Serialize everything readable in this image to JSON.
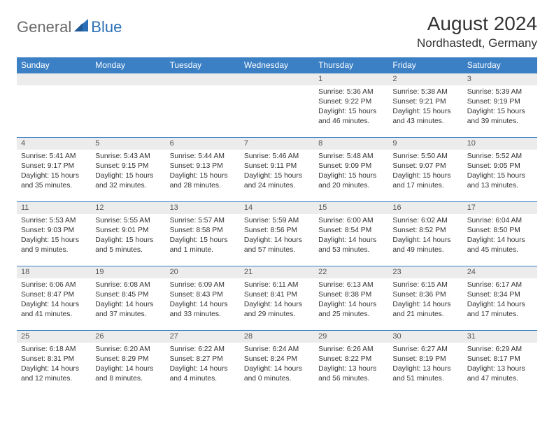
{
  "brand": {
    "name_left": "General",
    "name_right": "Blue"
  },
  "colors": {
    "header_bg": "#3b7fc4",
    "header_text": "#ffffff",
    "daynum_bg": "#ececec",
    "daynum_text": "#555555",
    "body_text": "#333333",
    "brand_gray": "#6b6b6b",
    "brand_blue": "#2a6fb5",
    "row_border": "#3b7fc4",
    "page_bg": "#ffffff"
  },
  "typography": {
    "month_title_size_pt": 21,
    "location_size_pt": 13,
    "weekday_size_pt": 9,
    "daynum_size_pt": 8,
    "cell_size_pt": 8
  },
  "title": "August 2024",
  "location": "Nordhastedt, Germany",
  "weekdays": [
    "Sunday",
    "Monday",
    "Tuesday",
    "Wednesday",
    "Thursday",
    "Friday",
    "Saturday"
  ],
  "weeks": [
    [
      {
        "day": null
      },
      {
        "day": null
      },
      {
        "day": null
      },
      {
        "day": null
      },
      {
        "day": "1",
        "sunrise": "Sunrise: 5:36 AM",
        "sunset": "Sunset: 9:22 PM",
        "daylight": "Daylight: 15 hours and 46 minutes."
      },
      {
        "day": "2",
        "sunrise": "Sunrise: 5:38 AM",
        "sunset": "Sunset: 9:21 PM",
        "daylight": "Daylight: 15 hours and 43 minutes."
      },
      {
        "day": "3",
        "sunrise": "Sunrise: 5:39 AM",
        "sunset": "Sunset: 9:19 PM",
        "daylight": "Daylight: 15 hours and 39 minutes."
      }
    ],
    [
      {
        "day": "4",
        "sunrise": "Sunrise: 5:41 AM",
        "sunset": "Sunset: 9:17 PM",
        "daylight": "Daylight: 15 hours and 35 minutes."
      },
      {
        "day": "5",
        "sunrise": "Sunrise: 5:43 AM",
        "sunset": "Sunset: 9:15 PM",
        "daylight": "Daylight: 15 hours and 32 minutes."
      },
      {
        "day": "6",
        "sunrise": "Sunrise: 5:44 AM",
        "sunset": "Sunset: 9:13 PM",
        "daylight": "Daylight: 15 hours and 28 minutes."
      },
      {
        "day": "7",
        "sunrise": "Sunrise: 5:46 AM",
        "sunset": "Sunset: 9:11 PM",
        "daylight": "Daylight: 15 hours and 24 minutes."
      },
      {
        "day": "8",
        "sunrise": "Sunrise: 5:48 AM",
        "sunset": "Sunset: 9:09 PM",
        "daylight": "Daylight: 15 hours and 20 minutes."
      },
      {
        "day": "9",
        "sunrise": "Sunrise: 5:50 AM",
        "sunset": "Sunset: 9:07 PM",
        "daylight": "Daylight: 15 hours and 17 minutes."
      },
      {
        "day": "10",
        "sunrise": "Sunrise: 5:52 AM",
        "sunset": "Sunset: 9:05 PM",
        "daylight": "Daylight: 15 hours and 13 minutes."
      }
    ],
    [
      {
        "day": "11",
        "sunrise": "Sunrise: 5:53 AM",
        "sunset": "Sunset: 9:03 PM",
        "daylight": "Daylight: 15 hours and 9 minutes."
      },
      {
        "day": "12",
        "sunrise": "Sunrise: 5:55 AM",
        "sunset": "Sunset: 9:01 PM",
        "daylight": "Daylight: 15 hours and 5 minutes."
      },
      {
        "day": "13",
        "sunrise": "Sunrise: 5:57 AM",
        "sunset": "Sunset: 8:58 PM",
        "daylight": "Daylight: 15 hours and 1 minute."
      },
      {
        "day": "14",
        "sunrise": "Sunrise: 5:59 AM",
        "sunset": "Sunset: 8:56 PM",
        "daylight": "Daylight: 14 hours and 57 minutes."
      },
      {
        "day": "15",
        "sunrise": "Sunrise: 6:00 AM",
        "sunset": "Sunset: 8:54 PM",
        "daylight": "Daylight: 14 hours and 53 minutes."
      },
      {
        "day": "16",
        "sunrise": "Sunrise: 6:02 AM",
        "sunset": "Sunset: 8:52 PM",
        "daylight": "Daylight: 14 hours and 49 minutes."
      },
      {
        "day": "17",
        "sunrise": "Sunrise: 6:04 AM",
        "sunset": "Sunset: 8:50 PM",
        "daylight": "Daylight: 14 hours and 45 minutes."
      }
    ],
    [
      {
        "day": "18",
        "sunrise": "Sunrise: 6:06 AM",
        "sunset": "Sunset: 8:47 PM",
        "daylight": "Daylight: 14 hours and 41 minutes."
      },
      {
        "day": "19",
        "sunrise": "Sunrise: 6:08 AM",
        "sunset": "Sunset: 8:45 PM",
        "daylight": "Daylight: 14 hours and 37 minutes."
      },
      {
        "day": "20",
        "sunrise": "Sunrise: 6:09 AM",
        "sunset": "Sunset: 8:43 PM",
        "daylight": "Daylight: 14 hours and 33 minutes."
      },
      {
        "day": "21",
        "sunrise": "Sunrise: 6:11 AM",
        "sunset": "Sunset: 8:41 PM",
        "daylight": "Daylight: 14 hours and 29 minutes."
      },
      {
        "day": "22",
        "sunrise": "Sunrise: 6:13 AM",
        "sunset": "Sunset: 8:38 PM",
        "daylight": "Daylight: 14 hours and 25 minutes."
      },
      {
        "day": "23",
        "sunrise": "Sunrise: 6:15 AM",
        "sunset": "Sunset: 8:36 PM",
        "daylight": "Daylight: 14 hours and 21 minutes."
      },
      {
        "day": "24",
        "sunrise": "Sunrise: 6:17 AM",
        "sunset": "Sunset: 8:34 PM",
        "daylight": "Daylight: 14 hours and 17 minutes."
      }
    ],
    [
      {
        "day": "25",
        "sunrise": "Sunrise: 6:18 AM",
        "sunset": "Sunset: 8:31 PM",
        "daylight": "Daylight: 14 hours and 12 minutes."
      },
      {
        "day": "26",
        "sunrise": "Sunrise: 6:20 AM",
        "sunset": "Sunset: 8:29 PM",
        "daylight": "Daylight: 14 hours and 8 minutes."
      },
      {
        "day": "27",
        "sunrise": "Sunrise: 6:22 AM",
        "sunset": "Sunset: 8:27 PM",
        "daylight": "Daylight: 14 hours and 4 minutes."
      },
      {
        "day": "28",
        "sunrise": "Sunrise: 6:24 AM",
        "sunset": "Sunset: 8:24 PM",
        "daylight": "Daylight: 14 hours and 0 minutes."
      },
      {
        "day": "29",
        "sunrise": "Sunrise: 6:26 AM",
        "sunset": "Sunset: 8:22 PM",
        "daylight": "Daylight: 13 hours and 56 minutes."
      },
      {
        "day": "30",
        "sunrise": "Sunrise: 6:27 AM",
        "sunset": "Sunset: 8:19 PM",
        "daylight": "Daylight: 13 hours and 51 minutes."
      },
      {
        "day": "31",
        "sunrise": "Sunrise: 6:29 AM",
        "sunset": "Sunset: 8:17 PM",
        "daylight": "Daylight: 13 hours and 47 minutes."
      }
    ]
  ]
}
